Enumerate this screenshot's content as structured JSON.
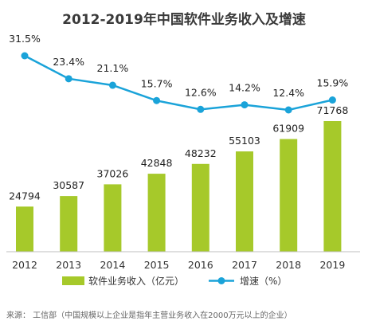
{
  "chart_data": {
    "type": "bar+line",
    "title": "2012-2019年中国软件业务收入及增速",
    "categories": [
      "2012",
      "2013",
      "2014",
      "2015",
      "2016",
      "2017",
      "2018",
      "2019"
    ],
    "series": [
      {
        "name": "软件业务收入（亿元）",
        "type": "bar",
        "values": [
          24794,
          30587,
          37026,
          42848,
          48232,
          55103,
          61909,
          71768
        ],
        "color": "#a6c92a"
      },
      {
        "name": "增速（%）",
        "type": "line",
        "values": [
          31.5,
          23.4,
          21.1,
          15.7,
          12.6,
          14.2,
          12.4,
          15.9
        ],
        "labels": [
          "31.5%",
          "23.4%",
          "21.1%",
          "15.7%",
          "12.6%",
          "14.2%",
          "12.4%",
          "15.9%"
        ],
        "color": "#1aa3d9"
      }
    ],
    "legend_position": "bottom",
    "grid": false,
    "source": "来源：  工信部（中国规模以上企业是指年主营业务收入在2000万元以上的企业）"
  }
}
